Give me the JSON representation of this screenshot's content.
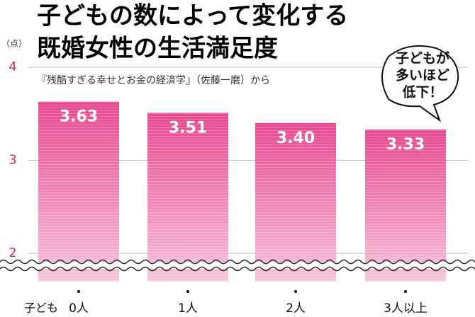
{
  "chart_data": {
    "type": "bar",
    "title_lines": [
      "子どもの数によって変化する",
      "既婚女性の生活満足度"
    ],
    "subtitle": "『残酷すぎる幸せとお金の経済学』（佐藤一磨）から",
    "y_unit": "（点）",
    "x_prefix": "子ども",
    "categories": [
      "0人",
      "1人",
      "2人",
      "3人以上"
    ],
    "values": [
      3.63,
      3.51,
      3.4,
      3.33
    ],
    "value_labels": [
      "3.63",
      "3.51",
      "3.40",
      "3.33"
    ],
    "color": "#e8468f",
    "ylim": [
      1.7,
      4
    ],
    "yticks": [
      2,
      3,
      4
    ],
    "grid": true,
    "annotation_lines": [
      "子どもが",
      "多いほど",
      "低下！"
    ]
  }
}
